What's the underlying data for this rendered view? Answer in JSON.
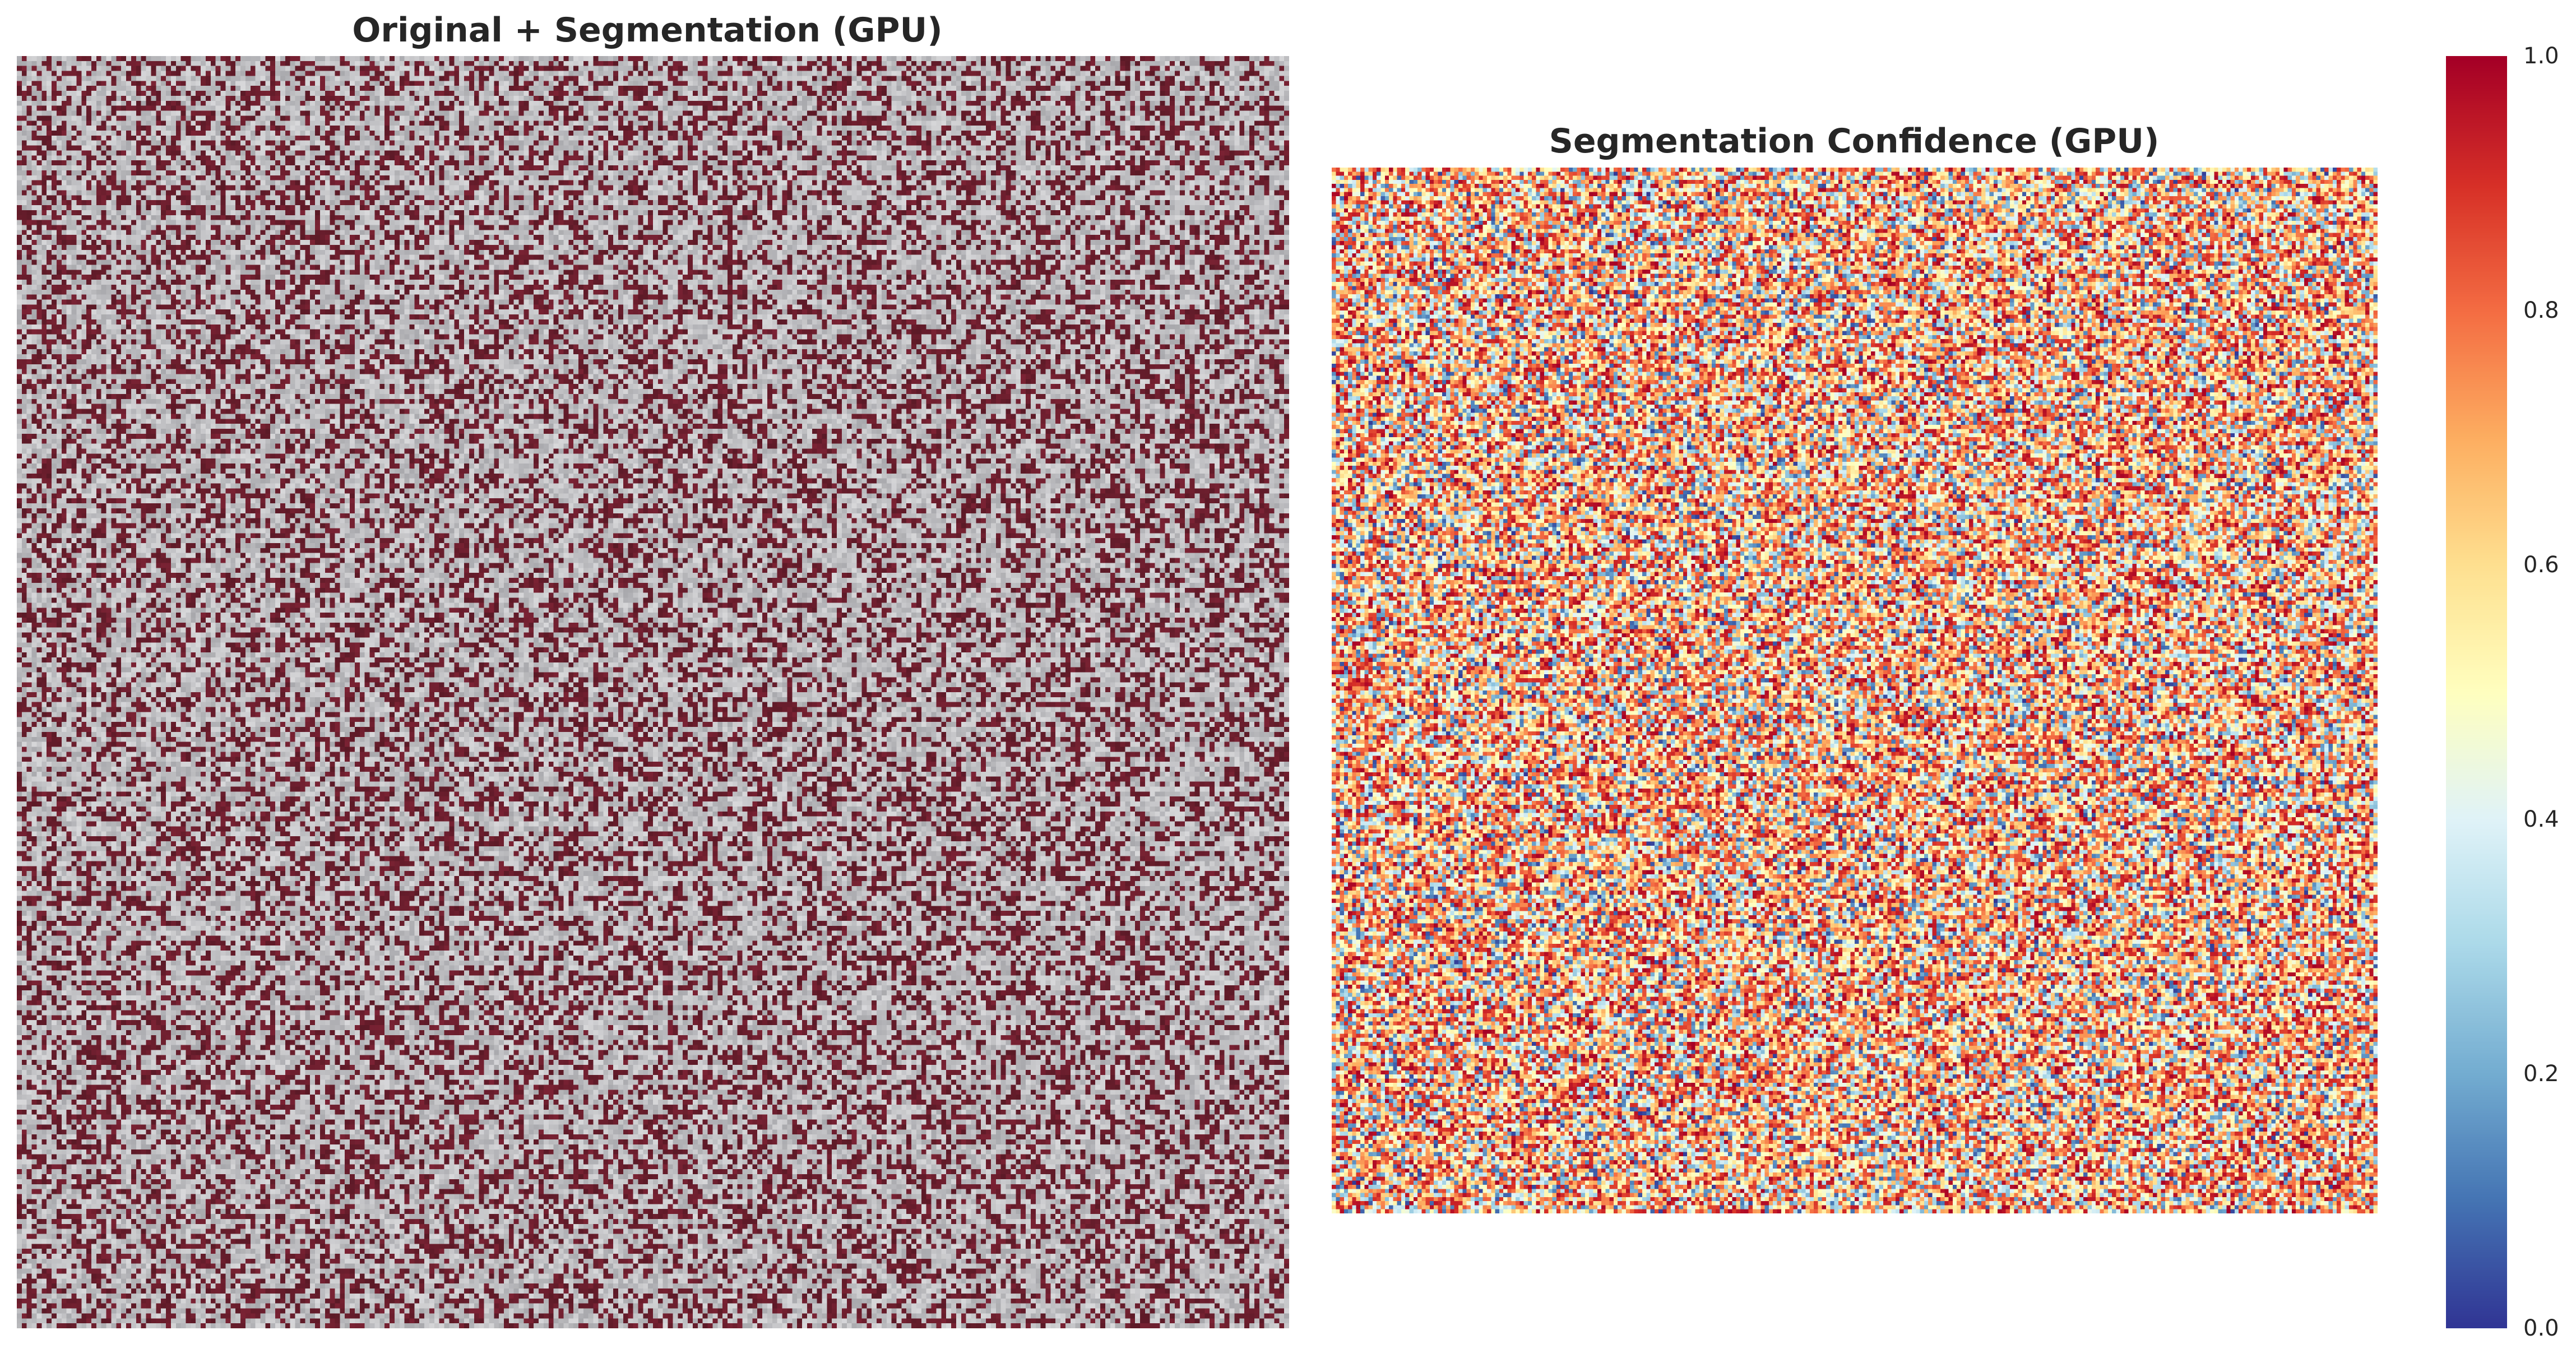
{
  "chart_data": [
    {
      "type": "heatmap",
      "title": "Original + Segmentation (GPU)",
      "grid_size": [
        256,
        256
      ],
      "colors": {
        "segmentation": "#6b1e2d",
        "background_light": "#d8d8da",
        "background_dark": "#a8a8ac"
      },
      "segmentation_fraction": 0.37,
      "grid": false,
      "axes_visible": false
    },
    {
      "type": "heatmap",
      "title": "Segmentation Confidence (GPU)",
      "grid_size": [
        256,
        256
      ],
      "colormap": "RdYlBu_r",
      "vmin": 0.0,
      "vmax": 1.0,
      "colorbar": {
        "ticks": [
          "0.0",
          "0.2",
          "0.4",
          "0.6",
          "0.8",
          "1.0"
        ],
        "placement": "right"
      },
      "grid": false,
      "axes_visible": false
    }
  ]
}
